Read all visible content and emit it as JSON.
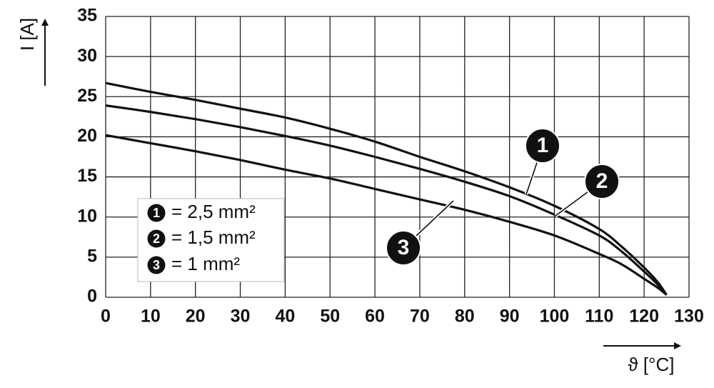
{
  "chart_data": {
    "type": "line",
    "x_label": "ϑ [°C]",
    "y_label": "I [A]",
    "x": [
      0,
      10,
      20,
      30,
      40,
      50,
      60,
      70,
      80,
      90,
      100,
      110,
      115,
      120,
      123,
      125
    ],
    "series": [
      {
        "marker": "1",
        "name": "= 2,5 mm²",
        "color": "#111111",
        "values": [
          26.7,
          25.6,
          24.6,
          23.5,
          22.4,
          21.0,
          19.4,
          17.5,
          15.7,
          13.7,
          11.4,
          8.5,
          6.3,
          3.7,
          1.9,
          0.3
        ]
      },
      {
        "marker": "2",
        "name": "= 1,5 mm²",
        "color": "#111111",
        "values": [
          23.9,
          23.1,
          22.2,
          21.2,
          20.1,
          18.9,
          17.5,
          16.0,
          14.4,
          12.6,
          10.3,
          7.7,
          5.7,
          3.2,
          1.6,
          0.3
        ]
      },
      {
        "marker": "3",
        "name": "= 1 mm²",
        "color": "#111111",
        "values": [
          20.2,
          19.2,
          18.2,
          17.1,
          15.9,
          14.8,
          13.5,
          12.2,
          10.9,
          9.4,
          7.7,
          5.4,
          4.1,
          2.3,
          1.2,
          0.3
        ]
      }
    ],
    "xlim": [
      0,
      130
    ],
    "xticks": [
      0,
      10,
      20,
      30,
      40,
      50,
      60,
      70,
      80,
      90,
      100,
      110,
      120,
      130
    ],
    "ylim": [
      0,
      35
    ],
    "yticks": [
      0,
      5,
      10,
      15,
      20,
      25,
      30,
      35
    ],
    "grid": true
  }
}
